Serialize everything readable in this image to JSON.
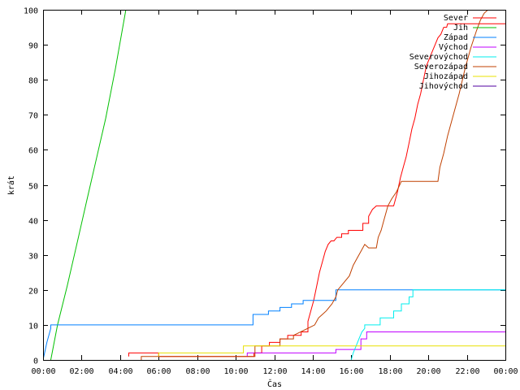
{
  "chart_data": {
    "type": "line",
    "title": "",
    "xlabel": "Čas",
    "ylabel": "krát",
    "xlim": [
      0,
      24
    ],
    "ylim": [
      0,
      100
    ],
    "x_ticks": [
      0,
      2,
      4,
      6,
      8,
      10,
      12,
      14,
      16,
      18,
      20,
      22,
      24
    ],
    "x_tick_labels": [
      "00:00",
      "02:00",
      "04:00",
      "06:00",
      "08:00",
      "10:00",
      "12:00",
      "14:00",
      "16:00",
      "18:00",
      "20:00",
      "22:00",
      "00:00"
    ],
    "y_ticks": [
      0,
      10,
      20,
      30,
      40,
      50,
      60,
      70,
      80,
      90,
      100
    ],
    "y_tick_labels": [
      "0",
      "10",
      "20",
      "30",
      "40",
      "50",
      "60",
      "70",
      "80",
      "90",
      "100"
    ],
    "grid": false,
    "legend_position": "top-right",
    "series": [
      {
        "name": "Sever",
        "color": "#ff0000",
        "x": [
          4.45,
          4.45,
          6.0,
          6.0,
          10.95,
          10.95,
          11.35,
          11.35,
          11.75,
          11.75,
          12.3,
          12.3,
          12.7,
          12.7,
          13.4,
          13.4,
          13.75,
          13.75,
          14.05,
          14.2,
          14.35,
          14.5,
          14.65,
          14.8,
          14.95,
          15.1,
          15.25,
          15.5,
          15.5,
          15.85,
          15.85,
          16.6,
          16.6,
          16.9,
          16.9,
          17.1,
          17.3,
          17.5,
          18.2,
          18.4,
          18.55,
          18.7,
          18.85,
          19.0,
          19.15,
          19.3,
          19.45,
          19.6,
          19.75,
          19.9,
          20.05,
          20.2,
          20.35,
          20.5,
          20.65,
          20.8,
          20.95,
          21.0,
          24.0
        ],
        "values": [
          1,
          2,
          2,
          1,
          1,
          2,
          2,
          4,
          4,
          5,
          5,
          6,
          6,
          7,
          7,
          8,
          8,
          11,
          17,
          21,
          25,
          28,
          31,
          33,
          34,
          34,
          35,
          35,
          36,
          36,
          37,
          37,
          39,
          39,
          41,
          43,
          44,
          44,
          44,
          48,
          52,
          55,
          58,
          62,
          66,
          69,
          73,
          76,
          80,
          84,
          86,
          88,
          90,
          92,
          93,
          95,
          95,
          96,
          96
        ]
      },
      {
        "name": "Jih",
        "color": "#00c000",
        "x": [
          0.4,
          0.75,
          1.25,
          1.75,
          2.25,
          2.75,
          3.25,
          3.75,
          4.3
        ],
        "values": [
          0,
          10,
          21,
          33,
          45,
          57,
          69,
          83,
          100
        ]
      },
      {
        "name": "Západ",
        "color": "#0080ff",
        "x": [
          0.0,
          0.2,
          0.4,
          0.4,
          10.9,
          10.9,
          11.7,
          11.7,
          12.3,
          12.3,
          12.9,
          12.9,
          13.5,
          13.5,
          15.2,
          15.2,
          24.0
        ],
        "values": [
          0,
          5,
          9,
          10,
          10,
          13,
          13,
          14,
          14,
          15,
          15,
          16,
          16,
          17,
          17,
          20,
          20
        ]
      },
      {
        "name": "Východ",
        "color": "#c000ff",
        "x": [
          10.6,
          10.6,
          15.2,
          15.2,
          16.5,
          16.5,
          16.8,
          16.8,
          24.0
        ],
        "values": [
          1,
          2,
          2,
          3,
          3,
          6,
          6,
          8,
          8
        ]
      },
      {
        "name": "Severovýchod",
        "color": "#00eeee",
        "x": [
          16.0,
          16.1,
          16.25,
          16.4,
          16.55,
          16.7,
          16.7,
          17.5,
          17.5,
          18.2,
          18.2,
          18.6,
          18.6,
          19.0,
          19.0,
          19.2,
          19.2,
          24.0
        ],
        "values": [
          0,
          2,
          4,
          6,
          8,
          9,
          10,
          10,
          12,
          12,
          14,
          14,
          16,
          16,
          18,
          18,
          20,
          20
        ]
      },
      {
        "name": "Severozápad",
        "color": "#c04000",
        "x": [
          5.1,
          5.1,
          11.0,
          11.0,
          12.3,
          12.3,
          13.0,
          13.0,
          14.1,
          14.3,
          14.5,
          14.7,
          15.0,
          15.2,
          15.3,
          15.6,
          15.9,
          16.1,
          16.3,
          16.5,
          16.7,
          16.9,
          17.3,
          17.4,
          17.55,
          17.7,
          17.9,
          18.1,
          18.35,
          18.6,
          19.5,
          20.5,
          20.6,
          20.8,
          21.0,
          21.3,
          21.6,
          21.9,
          22.2,
          22.5,
          22.7,
          22.9,
          23.1
        ],
        "values": [
          0,
          1,
          1,
          4,
          4,
          6,
          6,
          7,
          10,
          12,
          13,
          14,
          16,
          18,
          20,
          22,
          24,
          27,
          29,
          31,
          33,
          32,
          32,
          35,
          37,
          40,
          44,
          46,
          48,
          51,
          51,
          51,
          55,
          59,
          64,
          70,
          76,
          83,
          89,
          94,
          97,
          99,
          100
        ]
      },
      {
        "name": "Jihozápad",
        "color": "#e8e000",
        "x": [
          6.0,
          6.0,
          10.4,
          10.4,
          24.0
        ],
        "values": [
          1,
          2,
          2,
          4,
          4
        ]
      },
      {
        "name": "Jihovýchod",
        "color": "#5000a0",
        "x": [],
        "values": []
      }
    ]
  }
}
